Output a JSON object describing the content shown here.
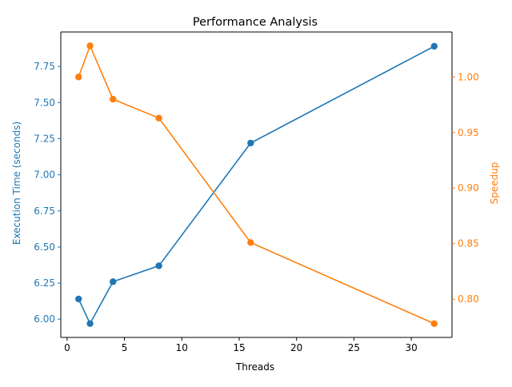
{
  "chart_data": {
    "type": "line",
    "title": "Performance Analysis",
    "xlabel": "Threads",
    "ylabel_left": "Execution Time (seconds)",
    "ylabel_right": "Speedup",
    "x": [
      1,
      2,
      4,
      8,
      16,
      32
    ],
    "xlim": [
      -0.55,
      33.55
    ],
    "xticks": [
      0,
      5,
      10,
      15,
      20,
      25,
      30
    ],
    "series": [
      {
        "axis": "left",
        "color": "#1f77b4",
        "values": [
          6.14,
          5.97,
          6.26,
          6.37,
          7.22,
          7.89
        ]
      },
      {
        "axis": "right",
        "color": "#ff7f0e",
        "values": [
          1.0,
          1.028,
          0.98,
          0.963,
          0.851,
          0.778
        ]
      }
    ],
    "ylim_left": [
      5.874,
      7.989
    ],
    "yticks_left": [
      "6.00",
      "6.25",
      "6.50",
      "6.75",
      "7.00",
      "7.25",
      "7.50",
      "7.75"
    ],
    "ylim_right": [
      0.7656,
      1.0405
    ],
    "yticks_right": [
      "0.80",
      "0.85",
      "0.90",
      "0.95",
      "1.00"
    ],
    "grid": false,
    "legend": "none"
  }
}
